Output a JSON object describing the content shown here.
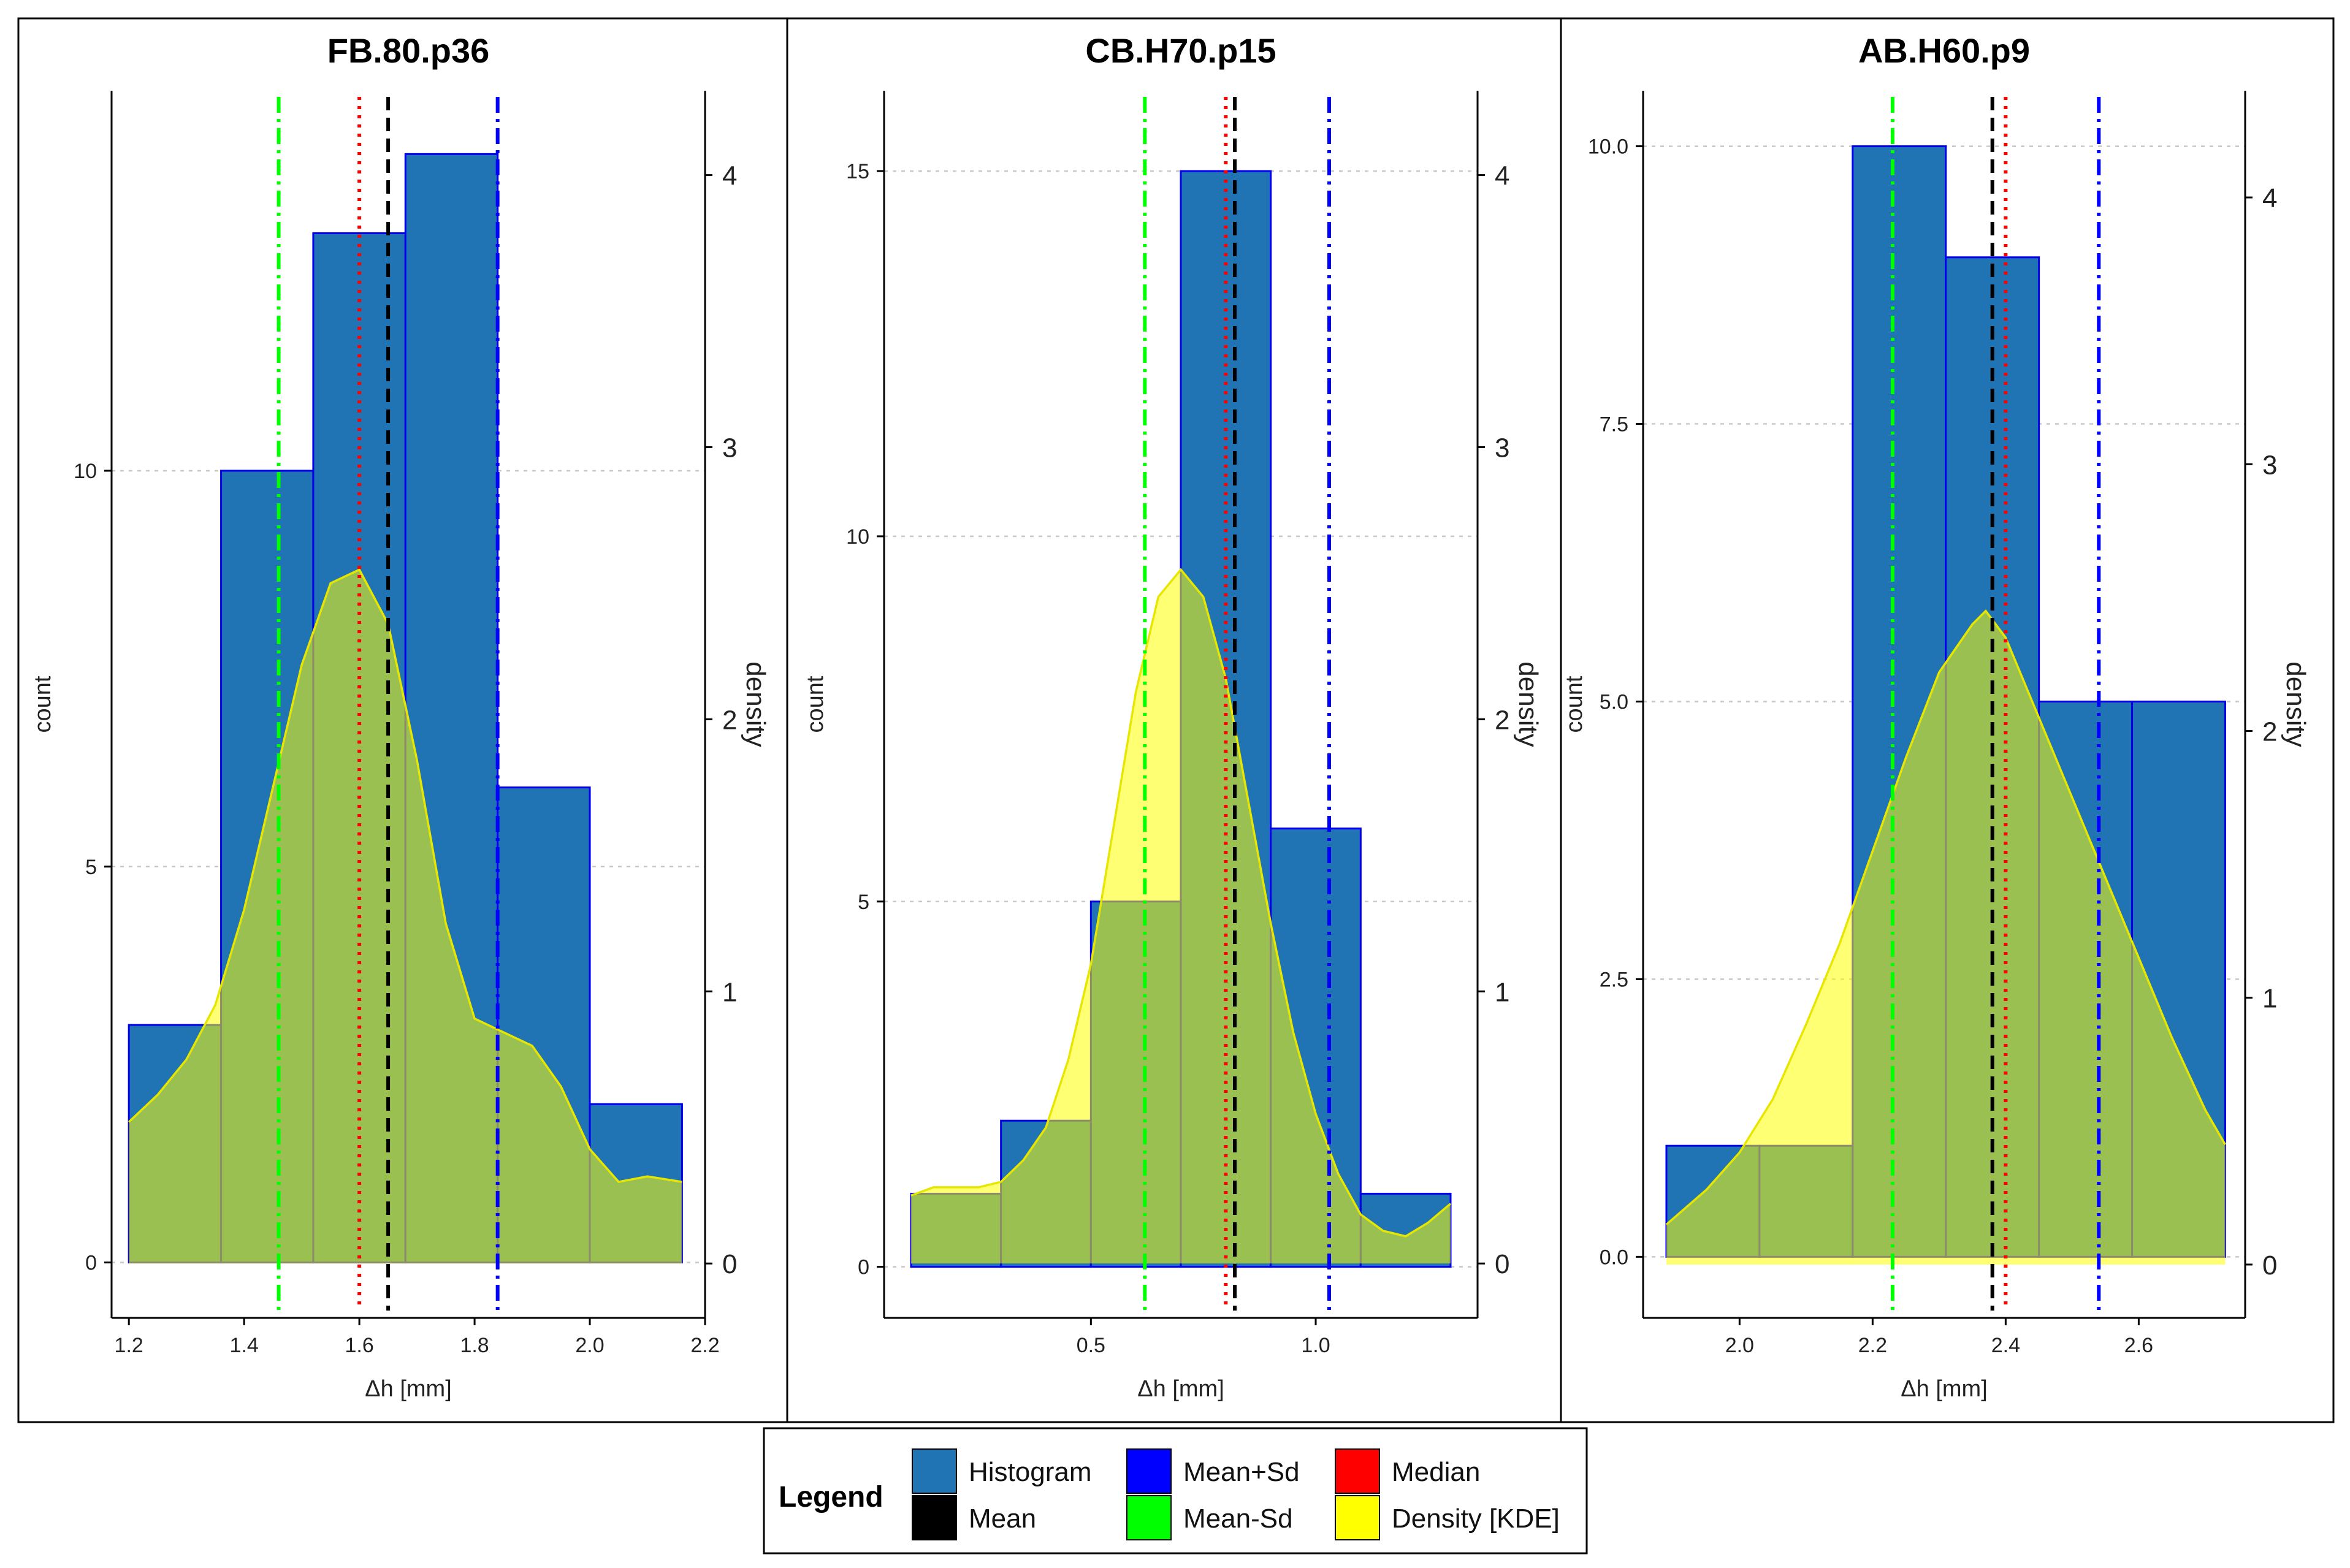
{
  "chart_data": [
    {
      "type": "bar",
      "title": "FB.80.p36",
      "xlabel": "Δh [mm]",
      "ylabel": "count",
      "y2label": "density",
      "xlim": [
        1.17,
        2.2
      ],
      "ylim": [
        -0.7,
        14.8
      ],
      "y2lim": [
        -0.2,
        4.31
      ],
      "xticks": [
        1.2,
        1.4,
        1.6,
        1.8,
        2.0,
        2.2
      ],
      "xtick_labels": [
        "1.2",
        "1.4",
        "1.6",
        "1.8",
        "2.0",
        "2.2"
      ],
      "yticks": [
        0,
        5,
        10
      ],
      "ytick_labels": [
        "0",
        "5",
        "10"
      ],
      "y2ticks": [
        0,
        1,
        2,
        3,
        4
      ],
      "y2tick_labels": [
        "0",
        "1",
        "2",
        "3",
        "4"
      ],
      "bins": [
        1.2,
        1.36,
        1.52,
        1.68,
        1.84,
        2.0,
        2.16
      ],
      "counts": [
        3,
        10,
        13,
        14,
        6,
        2
      ],
      "vlines": {
        "mean": 1.65,
        "median": 1.6,
        "mean_plus_sd": 1.84,
        "mean_minus_sd": 1.46
      },
      "density": {
        "x": [
          1.2,
          1.25,
          1.3,
          1.35,
          1.4,
          1.45,
          1.5,
          1.55,
          1.6,
          1.65,
          1.7,
          1.75,
          1.8,
          1.85,
          1.9,
          1.95,
          2.0,
          2.05,
          2.1,
          2.16
        ],
        "y": [
          0.52,
          0.62,
          0.75,
          0.95,
          1.3,
          1.75,
          2.2,
          2.5,
          2.55,
          2.35,
          1.85,
          1.25,
          0.9,
          0.85,
          0.8,
          0.65,
          0.42,
          0.3,
          0.32,
          0.3
        ]
      }
    },
    {
      "type": "bar",
      "title": "CB.H70.p15",
      "xlabel": "Δh [mm]",
      "ylabel": "count",
      "y2label": "density",
      "xlim": [
        0.04,
        1.36
      ],
      "ylim": [
        -0.7,
        16.1
      ],
      "y2lim": [
        -0.2,
        4.31
      ],
      "xticks": [
        0.5,
        1.0
      ],
      "xtick_labels": [
        "0.5",
        "1.0"
      ],
      "yticks": [
        0,
        5,
        10,
        15
      ],
      "ytick_labels": [
        "0",
        "5",
        "10",
        "15"
      ],
      "y2ticks": [
        0,
        1,
        2,
        3,
        4
      ],
      "y2tick_labels": [
        "0",
        "1",
        "2",
        "3",
        "4"
      ],
      "bins": [
        0.1,
        0.3,
        0.5,
        0.7,
        0.9,
        1.1,
        1.3
      ],
      "counts": [
        1,
        2,
        5,
        15,
        6,
        1
      ],
      "vlines": {
        "mean": 0.82,
        "median": 0.8,
        "mean_plus_sd": 1.03,
        "mean_minus_sd": 0.62
      },
      "density": {
        "x": [
          0.1,
          0.15,
          0.2,
          0.25,
          0.3,
          0.35,
          0.4,
          0.45,
          0.5,
          0.55,
          0.6,
          0.65,
          0.7,
          0.75,
          0.8,
          0.85,
          0.9,
          0.95,
          1.0,
          1.05,
          1.1,
          1.15,
          1.2,
          1.25,
          1.3
        ],
        "y": [
          0.25,
          0.28,
          0.28,
          0.28,
          0.3,
          0.38,
          0.5,
          0.75,
          1.1,
          1.6,
          2.1,
          2.45,
          2.55,
          2.45,
          2.15,
          1.7,
          1.25,
          0.85,
          0.55,
          0.33,
          0.18,
          0.12,
          0.1,
          0.15,
          0.22
        ]
      }
    },
    {
      "type": "bar",
      "title": "AB.H60.p9",
      "xlabel": "Δh [mm]",
      "ylabel": "count",
      "y2label": "density",
      "xlim": [
        1.855,
        2.76
      ],
      "ylim": [
        -0.55,
        10.5
      ],
      "y2lim": [
        -0.2,
        4.4
      ],
      "xticks": [
        2.0,
        2.2,
        2.4,
        2.6
      ],
      "xtick_labels": [
        "2.0",
        "2.2",
        "2.4",
        "2.6"
      ],
      "yticks": [
        0,
        2.5,
        5,
        7.5,
        10
      ],
      "ytick_labels": [
        "0.0",
        "2.5",
        "5.0",
        "7.5",
        "10.0"
      ],
      "y2ticks": [
        0,
        1,
        2,
        3,
        4
      ],
      "y2tick_labels": [
        "0",
        "1",
        "2",
        "3",
        "4"
      ],
      "bins": [
        1.89,
        2.03,
        2.17,
        2.31,
        2.45,
        2.59,
        2.73
      ],
      "counts": [
        1,
        1,
        10,
        9,
        5,
        5
      ],
      "vlines": {
        "mean": 2.38,
        "median": 2.4,
        "mean_plus_sd": 2.54,
        "mean_minus_sd": 2.23
      },
      "density": {
        "x": [
          1.89,
          1.95,
          2.0,
          2.05,
          2.1,
          2.15,
          2.2,
          2.25,
          2.3,
          2.35,
          2.37,
          2.4,
          2.45,
          2.5,
          2.55,
          2.6,
          2.65,
          2.7,
          2.73
        ],
        "y": [
          0.15,
          0.28,
          0.42,
          0.62,
          0.9,
          1.2,
          1.55,
          1.9,
          2.22,
          2.4,
          2.45,
          2.35,
          2.05,
          1.75,
          1.45,
          1.15,
          0.85,
          0.58,
          0.45
        ]
      }
    }
  ],
  "legend": {
    "title": "Legend",
    "items": [
      {
        "key": "histogram",
        "label": "Histogram",
        "color": "#2074b4"
      },
      {
        "key": "mean",
        "label": "Mean",
        "color": "#000000"
      },
      {
        "key": "mean_plus_sd",
        "label": "Mean+Sd",
        "color": "#0000ff"
      },
      {
        "key": "mean_minus_sd",
        "label": "Mean-Sd",
        "color": "#00ff00"
      },
      {
        "key": "median",
        "label": "Median",
        "color": "#ff0000"
      },
      {
        "key": "density",
        "label": "Density [KDE]",
        "color": "#ffff00"
      }
    ]
  },
  "colors": {
    "histogram_fill": "#2074b4",
    "histogram_border": "#0000ee",
    "density_fill": "#ffff00",
    "density_line": "#e6e600",
    "mean": "#000000",
    "median": "#ff0000",
    "mean_plus_sd": "#0000ff",
    "mean_minus_sd": "#00ff00",
    "grid": "#c8c8c8"
  }
}
